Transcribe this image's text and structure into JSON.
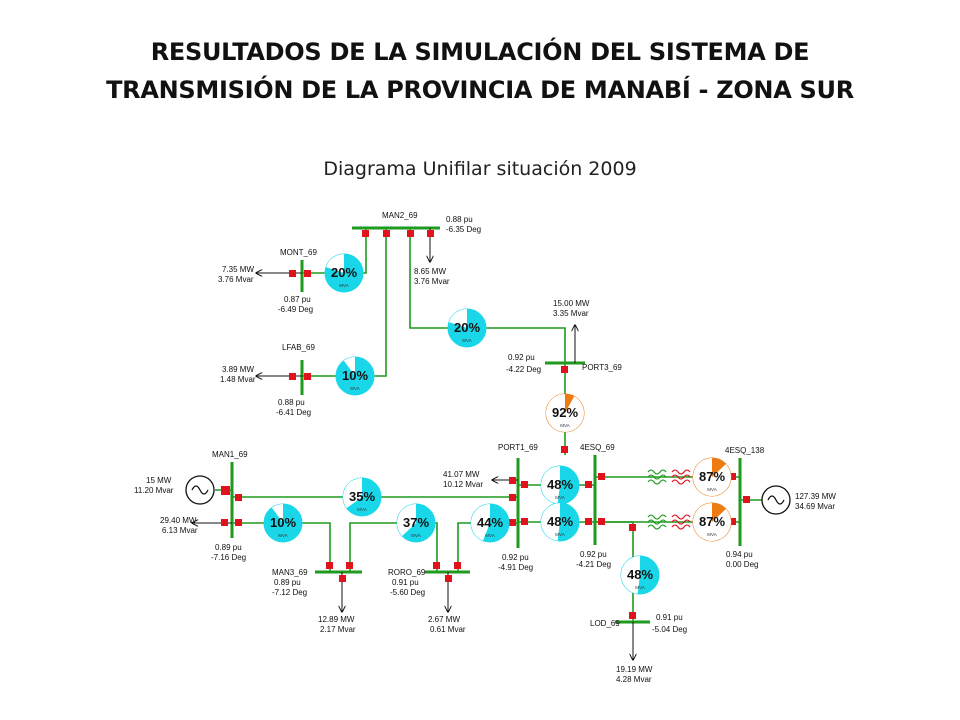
{
  "header": {
    "title_line1": "RESULTADOS DE LA SIMULACIÓN DEL SISTEMA DE",
    "title_line2": "TRANSMISIÓN DE LA PROVINCIA DE MANABÍ - ZONA SUR",
    "subtitle": "Diagrama Unifilar situación 2009"
  },
  "colors": {
    "line": "#1e9a1e",
    "breaker": "#e0121b",
    "gauge_cyan": "#19d7e8",
    "gauge_orange": "#ee7a12",
    "gauge_white": "#ffffff"
  },
  "buses": {
    "man2": {
      "name": "MAN2_69",
      "voltage": "0.88 pu",
      "angle": "-6.35 Deg"
    },
    "mont": {
      "name": "MONT_69",
      "voltage": "0.87 pu",
      "angle": "-6.49 Deg"
    },
    "lfab": {
      "name": "LFAB_69",
      "voltage": "0.88 pu",
      "angle": "-6.41 Deg"
    },
    "port3": {
      "name": "PORT3_69",
      "voltage": "0.92 pu",
      "angle": "-4.22 Deg"
    },
    "man1": {
      "name": "MAN1_69",
      "voltage": "0.89 pu",
      "angle": "-7.16 Deg"
    },
    "port1": {
      "name": "PORT1_69",
      "voltage": "0.92 pu",
      "angle": "-4.91 Deg"
    },
    "esq69": {
      "name": "4ESQ_69",
      "voltage": "0.92 pu",
      "angle": "-4.21 Deg"
    },
    "esq138": {
      "name": "4ESQ_138",
      "voltage": "0.94 pu",
      "angle": "0.00 Deg"
    },
    "man3": {
      "name": "MAN3_69",
      "voltage": "0.89 pu",
      "angle": "-7.12 Deg"
    },
    "roro": {
      "name": "RORO_69",
      "voltage": "0.91 pu",
      "angle": "-5.60 Deg"
    },
    "lod": {
      "name": "LOD_69",
      "voltage": "0.91 pu",
      "angle": "-5.04 Deg"
    }
  },
  "loads": {
    "man2": {
      "mw": "8.65 MW",
      "mvar": "3.76 Mvar"
    },
    "mont": {
      "mw": "7.35 MW",
      "mvar": "3.76 Mvar"
    },
    "lfab": {
      "mw": "3.89 MW",
      "mvar": "1.48 Mvar"
    },
    "port3": {
      "mw": "15.00 MW",
      "mvar": "3.35 Mvar"
    },
    "man1": {
      "mw": "29.40 MW",
      "mvar": "6.13 Mvar"
    },
    "port1": {
      "mw": "41.07 MW",
      "mvar": "10.12 Mvar"
    },
    "man3": {
      "mw": "12.89 MW",
      "mvar": "2.17 Mvar"
    },
    "roro": {
      "mw": "2.67 MW",
      "mvar": "0.61 Mvar"
    },
    "lod": {
      "mw": "19.19 MW",
      "mvar": "4.28 Mvar"
    }
  },
  "generators": {
    "man1": {
      "mw": "15 MW",
      "mvar": "11.20 Mvar"
    },
    "esq138": {
      "mw": "127.39 MW",
      "mvar": "34.69 Mvar"
    }
  },
  "gauge_unit": "MVA",
  "gauges": [
    {
      "id": "man2-mont",
      "label": "20%",
      "value": 20,
      "color": "gauge_cyan"
    },
    {
      "id": "man2-lfab",
      "label": "10%",
      "value": 10,
      "color": "gauge_cyan"
    },
    {
      "id": "man2-port3",
      "label": "20%",
      "value": 20,
      "color": "gauge_cyan"
    },
    {
      "id": "port3-esq",
      "label": "92%",
      "value": 92,
      "color": "gauge_orange"
    },
    {
      "id": "man1-port1",
      "label": "35%",
      "value": 35,
      "color": "gauge_cyan"
    },
    {
      "id": "man1-man3",
      "label": "10%",
      "value": 10,
      "color": "gauge_cyan"
    },
    {
      "id": "man3-roro",
      "label": "37%",
      "value": 37,
      "color": "gauge_cyan"
    },
    {
      "id": "roro-port1",
      "label": "44%",
      "value": 44,
      "color": "gauge_cyan"
    },
    {
      "id": "port1-esq-a",
      "label": "48%",
      "value": 48,
      "color": "gauge_cyan"
    },
    {
      "id": "port1-esq-b",
      "label": "48%",
      "value": 48,
      "color": "gauge_cyan"
    },
    {
      "id": "esq-lod",
      "label": "48%",
      "value": 48,
      "color": "gauge_cyan"
    },
    {
      "id": "xfmr-a",
      "label": "87%",
      "value": 87,
      "color": "gauge_orange"
    },
    {
      "id": "xfmr-b",
      "label": "87%",
      "value": 87,
      "color": "gauge_orange"
    }
  ]
}
